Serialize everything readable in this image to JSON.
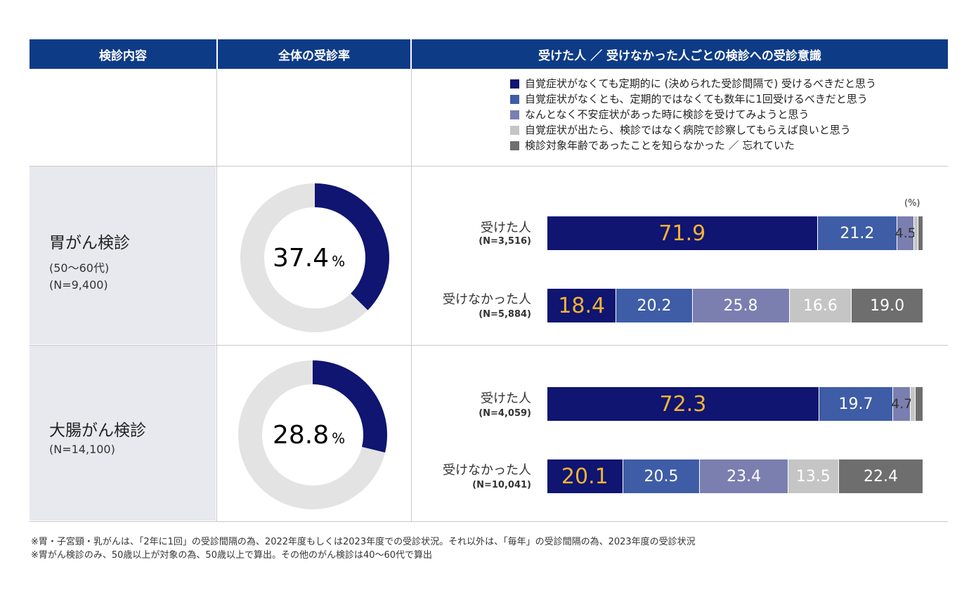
{
  "header": {
    "col1": "検診内容",
    "col2": "全体の受診率",
    "col3": "受けた人 ／ 受けなかった人ごとの検診への受診意識"
  },
  "legend": [
    {
      "label": "自覚症状がなくても定期的に (決められた受診間隔で) 受けるべきだと思う",
      "color": "#0f1570"
    },
    {
      "label": "自覚症状がなくとも、定期的ではなくても数年に1回受けるべきだと思う",
      "color": "#3e5da6"
    },
    {
      "label": "なんとなく不安症状があった時に検診を受けてみようと思う",
      "color": "#7a7fb0"
    },
    {
      "label": "自覚症状が出たら、検診ではなく病院で診察してもらえば良いと思う",
      "color": "#c5c5c5"
    },
    {
      "label": "検診対象年齢であったことを知らなかった ／ 忘れていた",
      "color": "#6e6e6e"
    }
  ],
  "unit_label": "(%)",
  "chart_data": [
    {
      "type": "bar",
      "orientation": "horizontal",
      "stacked": true,
      "category": "胃がん検診",
      "category_note": "(50〜60代)",
      "category_n": "(N=9,400)",
      "overall_rate": {
        "value": 37.4,
        "label": "37.4",
        "unit": "%"
      },
      "rows": [
        {
          "label": "受けた人",
          "n": "(N=3,516)",
          "values": [
            71.9,
            21.2,
            4.5,
            1.0,
            1.4
          ],
          "labels": [
            "71.9",
            "21.2",
            "4.5",
            "",
            ""
          ]
        },
        {
          "label": "受けなかった人",
          "n": "(N=5,884)",
          "values": [
            18.4,
            20.2,
            25.8,
            16.6,
            19.0
          ],
          "labels": [
            "18.4",
            "20.2",
            "25.8",
            "16.6",
            "19.0"
          ]
        }
      ]
    },
    {
      "type": "bar",
      "orientation": "horizontal",
      "stacked": true,
      "category": "大腸がん検診",
      "category_note": "",
      "category_n": "(N=14,100)",
      "overall_rate": {
        "value": 28.8,
        "label": "28.8",
        "unit": "%"
      },
      "rows": [
        {
          "label": "受けた人",
          "n": "(N=4,059)",
          "values": [
            72.3,
            19.7,
            4.7,
            1.2,
            2.1
          ],
          "labels": [
            "72.3",
            "19.7",
            "4.7",
            "",
            ""
          ]
        },
        {
          "label": "受けなかった人",
          "n": "(N=10,041)",
          "values": [
            20.1,
            20.5,
            23.4,
            13.5,
            22.4
          ],
          "labels": [
            "20.1",
            "20.5",
            "23.4",
            "13.5",
            "22.4"
          ]
        }
      ]
    }
  ],
  "colors": {
    "header_bg": "#0e3b86",
    "donut_fill": "#0f1570",
    "donut_rest": "#e3e3e3",
    "highlight_text": "#f5b335"
  },
  "footnotes": [
    "※胃・子宮頸・乳がんは、「2年に1回」の受診間隔の為、2022年度もしくは2023年度での受診状況。それ以外は、「毎年」の受診間隔の為、2023年度の受診状況",
    "※胃がん検診のみ、50歳以上が対象の為、50歳以上で算出。その他のがん検診は40〜60代で算出"
  ]
}
